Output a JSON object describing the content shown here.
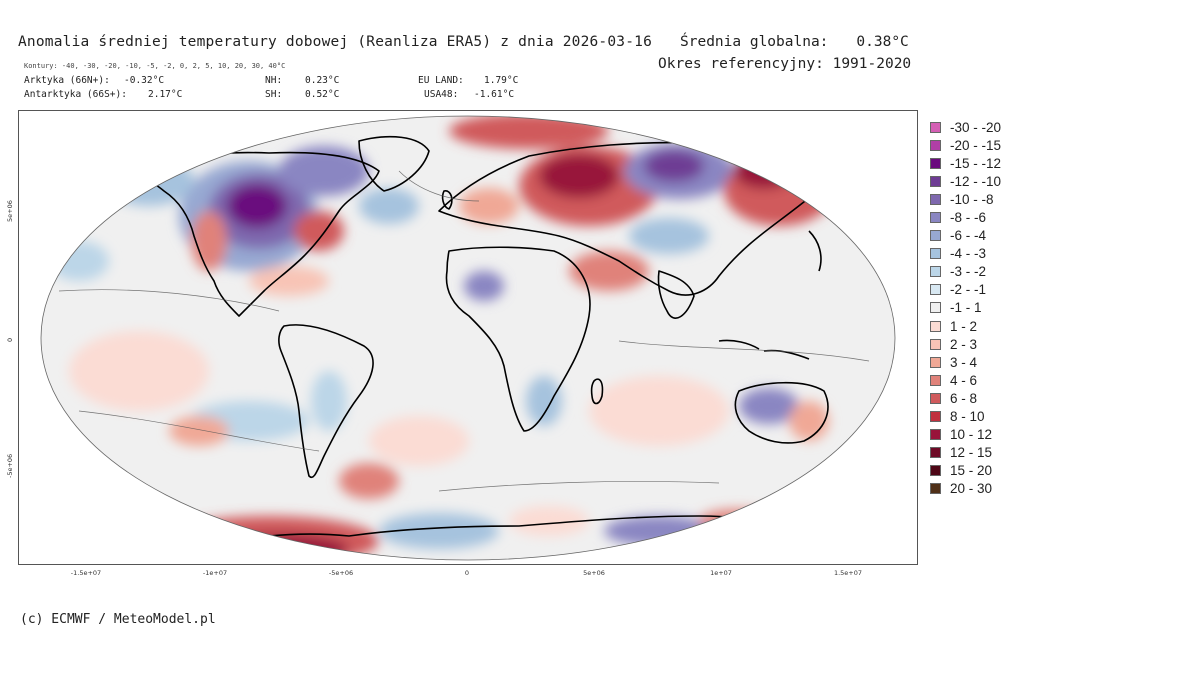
{
  "header": {
    "title": "Anomalia średniej temperatury dobowej (Reanliza ERA5) z dnia 2026-03-16",
    "global_mean_label": "Średnia globalna:",
    "global_mean_value": "0.38°C",
    "reference_period": "Okres referencyjny: 1991-2020",
    "contours_note": "Kontury: -40, -30, -20, -10, -5, -2, 0, 2, 5, 10, 20, 30, 40°C"
  },
  "stats": {
    "arctic_label": "Arktyka (66N+):",
    "arctic_value": "-0.32°C",
    "antarctic_label": "Antarktyka (66S+):",
    "antarctic_value": "2.17°C",
    "nh_label": "NH:",
    "nh_value": "0.23°C",
    "sh_label": "SH:",
    "sh_value": "0.52°C",
    "eu_label": "EU LAND:",
    "eu_value": "1.79°C",
    "usa_label": "USA48:",
    "usa_value": "-1.61°C"
  },
  "axes": {
    "x_ticks": [
      "-1.5e+07",
      "-1e+07",
      "-5e+06",
      "0",
      "5e+06",
      "1e+07",
      "1.5e+07"
    ],
    "y_ticks": [
      "5e+06",
      "0",
      "-5e+06"
    ]
  },
  "legend": [
    {
      "label": "-30 - -20",
      "color": "#d45fb4"
    },
    {
      "label": "-20 - -15",
      "color": "#b03fa6"
    },
    {
      "label": "-15 - -12",
      "color": "#6a0a7e"
    },
    {
      "label": "-12 - -10",
      "color": "#6e3c94"
    },
    {
      "label": "-10 - -8",
      "color": "#7e68ae"
    },
    {
      "label": "-8 - -6",
      "color": "#8a86c2"
    },
    {
      "label": "-6 - -4",
      "color": "#97a8d2"
    },
    {
      "label": "-4 - -3",
      "color": "#a6c3de"
    },
    {
      "label": "-3 - -2",
      "color": "#bcd6e8"
    },
    {
      "label": "-2 - -1",
      "color": "#d8e8f2"
    },
    {
      "label": "-1 - 1",
      "color": "#f0f0f0"
    },
    {
      "label": "1 - 2",
      "color": "#fbdcd4"
    },
    {
      "label": "2 - 3",
      "color": "#f8c4b6"
    },
    {
      "label": "3 - 4",
      "color": "#f0a896"
    },
    {
      "label": "4 - 6",
      "color": "#e0827a"
    },
    {
      "label": "6 - 8",
      "color": "#d05a5c"
    },
    {
      "label": "8 - 10",
      "color": "#c0303e"
    },
    {
      "label": "10 - 12",
      "color": "#98143a"
    },
    {
      "label": "12 - 15",
      "color": "#6e0a26"
    },
    {
      "label": "15 - 20",
      "color": "#4e0616"
    },
    {
      "label": "20 - 30",
      "color": "#503018"
    }
  ],
  "credit": "(c) ECMWF / MeteoModel.pl"
}
